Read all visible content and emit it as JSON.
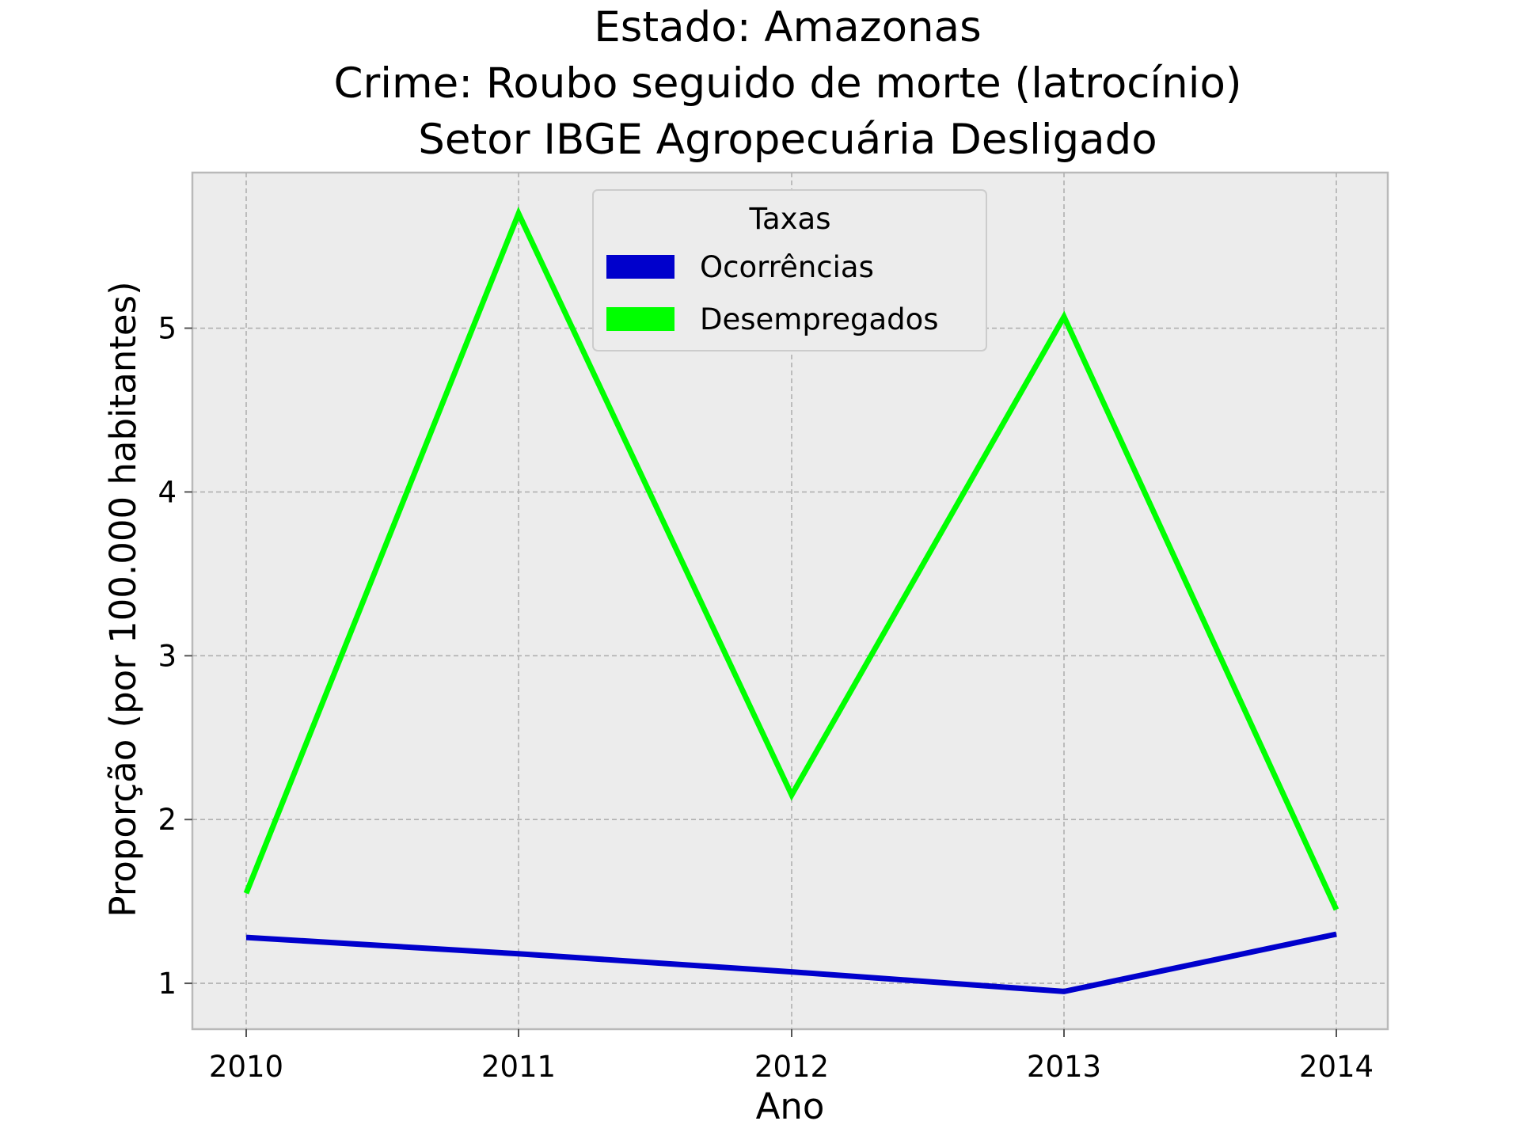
{
  "chart_data": {
    "type": "line",
    "title_lines": [
      "Estado: Amazonas",
      "Crime: Roubo seguido de morte (latrocínio)",
      "Setor IBGE  Agropecuária   Desligado"
    ],
    "xlabel": "Ano",
    "ylabel": "Proporção (por 100.000 habitantes)",
    "x": [
      "2010",
      "2011",
      "2012",
      "2013",
      "2014"
    ],
    "yticks": [
      "1",
      "2",
      "3",
      "4",
      "5"
    ],
    "ylim": [
      0.72,
      5.95
    ],
    "grid": true,
    "legend": {
      "title": "Taxas",
      "placement": "upper center"
    },
    "series": [
      {
        "name": "Ocorrências",
        "color": "#0000cc",
        "values": [
          1.28,
          1.18,
          1.07,
          0.95,
          1.3
        ]
      },
      {
        "name": "Desempregados",
        "color": "#00ff00",
        "values": [
          1.55,
          5.7,
          2.15,
          5.07,
          1.45
        ]
      }
    ]
  }
}
